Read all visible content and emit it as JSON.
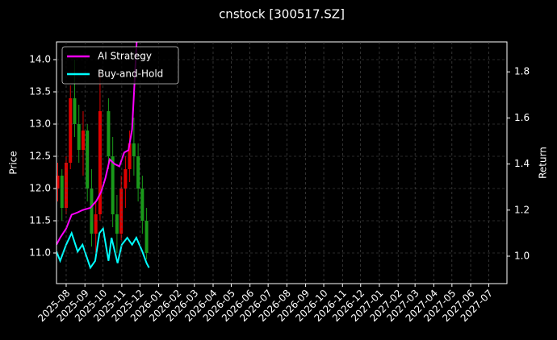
{
  "chart_data": {
    "type": "candlestick",
    "title": "cnstock [300517.SZ]",
    "ylabel": "Price",
    "y2label": "Return",
    "x": [
      "2025-07-18",
      "2025-07-25",
      "2025-08-01",
      "2025-08-08",
      "2025-08-15",
      "2025-08-22",
      "2025-08-29",
      "2025-09-05",
      "2025-09-12",
      "2025-09-19",
      "2025-09-26",
      "2025-10-10",
      "2025-10-17",
      "2025-10-24",
      "2025-10-31",
      "2025-11-07",
      "2025-11-14",
      "2025-11-21",
      "2025-11-28",
      "2025-12-05",
      "2025-12-12"
    ],
    "open": [
      12.0,
      12.2,
      11.7,
      12.4,
      13.4,
      13.0,
      12.6,
      12.9,
      12.0,
      11.3,
      11.6,
      13.2,
      12.5,
      11.6,
      11.3,
      12.0,
      12.3,
      12.7,
      12.5,
      12.0,
      11.5
    ],
    "high": [
      12.4,
      12.3,
      12.5,
      13.6,
      14.0,
      13.3,
      13.2,
      13.0,
      12.3,
      11.8,
      13.8,
      13.4,
      12.8,
      11.9,
      12.2,
      12.5,
      12.9,
      13.1,
      12.7,
      12.2,
      11.7
    ],
    "low": [
      11.8,
      11.5,
      11.6,
      12.3,
      12.8,
      12.4,
      12.2,
      11.8,
      11.1,
      11.0,
      11.5,
      12.3,
      11.4,
      11.0,
      11.2,
      11.7,
      12.1,
      12.2,
      11.8,
      11.3,
      10.9
    ],
    "close": [
      12.2,
      11.7,
      12.4,
      13.4,
      13.0,
      12.6,
      12.9,
      12.0,
      11.3,
      11.6,
      13.2,
      12.5,
      11.6,
      11.3,
      12.0,
      12.3,
      12.7,
      12.5,
      12.0,
      11.5,
      11.0
    ],
    "up_color": "#e00000",
    "down_color": "#1a9a1a",
    "series": [
      {
        "name": "AI Strategy",
        "color": "#ff00ff",
        "axis": "y2",
        "x": [
          "2025-07-16",
          "2025-07-22",
          "2025-08-01",
          "2025-08-10",
          "2025-08-20",
          "2025-08-28",
          "2025-09-10",
          "2025-09-20",
          "2025-09-28",
          "2025-10-05",
          "2025-10-12",
          "2025-10-20",
          "2025-10-28",
          "2025-11-05",
          "2025-11-12",
          "2025-11-18",
          "2025-11-22",
          "2025-11-26"
        ],
        "values": [
          1.05,
          1.08,
          1.12,
          1.18,
          1.19,
          1.2,
          1.21,
          1.24,
          1.28,
          1.34,
          1.42,
          1.4,
          1.39,
          1.45,
          1.46,
          1.55,
          1.75,
          1.95
        ]
      },
      {
        "name": "Buy-and-Hold",
        "color": "#00ffff",
        "axis": "y2",
        "x": [
          "2025-07-16",
          "2025-07-22",
          "2025-08-01",
          "2025-08-10",
          "2025-08-20",
          "2025-08-28",
          "2025-09-10",
          "2025-09-18",
          "2025-09-25",
          "2025-10-01",
          "2025-10-10",
          "2025-10-15",
          "2025-10-25",
          "2025-11-01",
          "2025-11-10",
          "2025-11-18",
          "2025-11-25",
          "2025-12-05",
          "2025-12-12",
          "2025-12-16"
        ],
        "values": [
          1.02,
          0.98,
          1.05,
          1.1,
          1.02,
          1.05,
          0.95,
          0.98,
          1.1,
          1.12,
          0.98,
          1.08,
          0.97,
          1.05,
          1.08,
          1.05,
          1.08,
          1.02,
          0.97,
          0.95
        ]
      }
    ],
    "xlim": [
      "2025-07-16",
      "2027-07-31"
    ],
    "xticks": [
      {
        "value": "2025-08-01",
        "label": "2025-08"
      },
      {
        "value": "2025-09-01",
        "label": "2025-09"
      },
      {
        "value": "2025-10-01",
        "label": "2025-10"
      },
      {
        "value": "2025-11-01",
        "label": "2025-11"
      },
      {
        "value": "2025-12-01",
        "label": "2025-12"
      },
      {
        "value": "2026-01-01",
        "label": "2026-01"
      },
      {
        "value": "2026-02-01",
        "label": "2026-02"
      },
      {
        "value": "2026-03-01",
        "label": "2026-03"
      },
      {
        "value": "2026-04-01",
        "label": "2026-04"
      },
      {
        "value": "2026-05-01",
        "label": "2026-05"
      },
      {
        "value": "2026-06-01",
        "label": "2026-06"
      },
      {
        "value": "2026-07-01",
        "label": "2026-07"
      },
      {
        "value": "2026-08-01",
        "label": "2026-08"
      },
      {
        "value": "2026-09-01",
        "label": "2026-09"
      },
      {
        "value": "2026-10-01",
        "label": "2026-10"
      },
      {
        "value": "2026-11-01",
        "label": "2026-11"
      },
      {
        "value": "2026-12-01",
        "label": "2026-12"
      },
      {
        "value": "2027-01-01",
        "label": "2027-01"
      },
      {
        "value": "2027-02-01",
        "label": "2027-02"
      },
      {
        "value": "2027-03-01",
        "label": "2027-03"
      },
      {
        "value": "2027-04-01",
        "label": "2027-04"
      },
      {
        "value": "2027-05-01",
        "label": "2027-05"
      },
      {
        "value": "2027-06-01",
        "label": "2027-06"
      },
      {
        "value": "2027-07-01",
        "label": "2027-07"
      }
    ],
    "ylim": [
      10.525,
      14.275
    ],
    "yticks": [
      {
        "value": 11,
        "label": "11.0"
      },
      {
        "value": 11.5,
        "label": "11.5"
      },
      {
        "value": 12,
        "label": "12.0"
      },
      {
        "value": 12.5,
        "label": "12.5"
      },
      {
        "value": 13,
        "label": "13.0"
      },
      {
        "value": 13.5,
        "label": "13.5"
      },
      {
        "value": 14,
        "label": "14.0"
      }
    ],
    "y2lim": [
      0.881,
      1.93
    ],
    "y2ticks": [
      {
        "value": 1,
        "label": "1.0"
      },
      {
        "value": 1.2,
        "label": "1.2"
      },
      {
        "value": 1.4,
        "label": "1.4"
      },
      {
        "value": 1.6,
        "label": "1.6"
      },
      {
        "value": 1.8,
        "label": "1.8"
      }
    ],
    "grid": true,
    "legend": "upper left"
  }
}
